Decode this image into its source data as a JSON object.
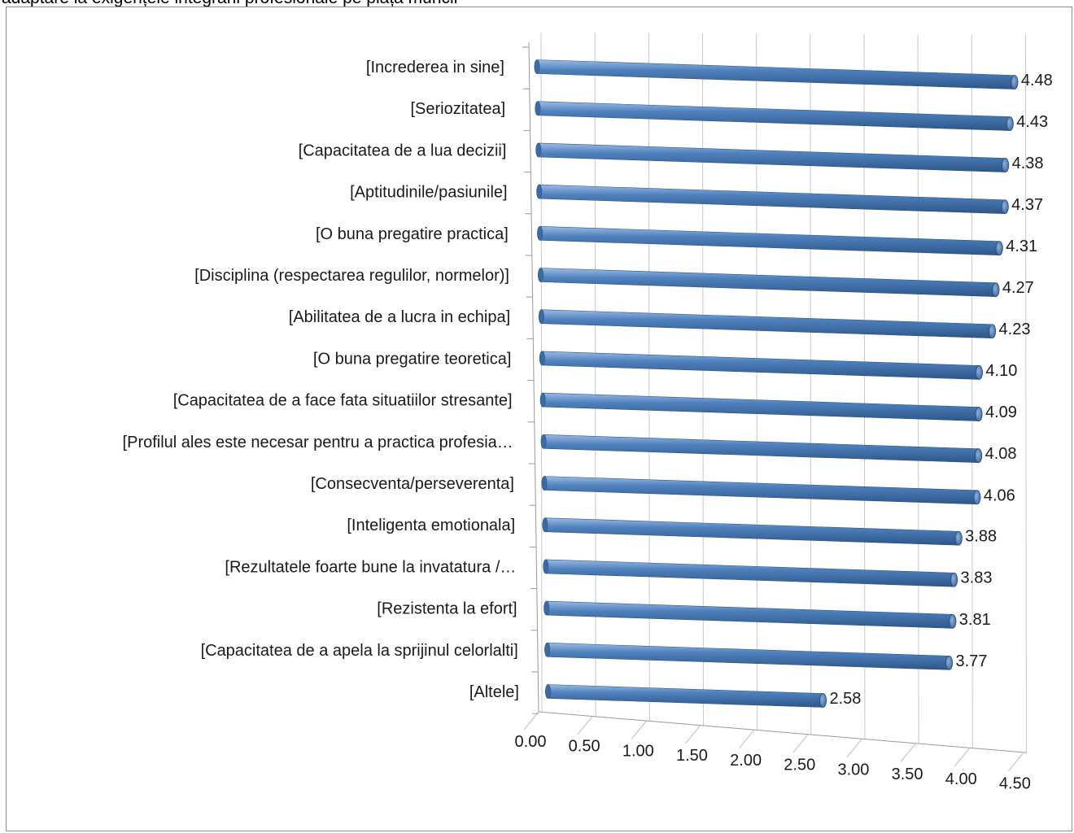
{
  "title": "adaptare la exigențele integrării profesionale pe piața muncii",
  "chart_data": {
    "type": "bar",
    "orientation": "horizontal",
    "style": "3d-cylinder",
    "categories": [
      "[Increderea in sine]",
      "[Seriozitatea]",
      "[Capacitatea de a lua decizii]",
      "[Aptitudinile/pasiunile]",
      "[O buna pregatire practica]",
      "[Disciplina (respectarea regulilor, normelor)]",
      "[Abilitatea de a lucra in echipa]",
      "[O buna pregatire teoretica]",
      "[Capacitatea de a face fata situatiilor stresante]",
      "[Profilul ales este necesar pentru a practica profesia…",
      "[Consecventa/perseverenta]",
      "[Inteligenta emotionala]",
      "[Rezultatele foarte bune la invatatura /…",
      "[Rezistenta la efort]",
      "[Capacitatea de a apela la sprijinul celorlalti]",
      "[Altele]"
    ],
    "values": [
      4.48,
      4.43,
      4.38,
      4.37,
      4.31,
      4.27,
      4.23,
      4.1,
      4.09,
      4.08,
      4.06,
      3.88,
      3.83,
      3.81,
      3.77,
      2.58
    ],
    "value_labels": [
      "4.48",
      "4.43",
      "4.38",
      "4.37",
      "4.31",
      "4.27",
      "4.23",
      "4.10",
      "4.09",
      "4.08",
      "4.06",
      "3.88",
      "3.83",
      "3.81",
      "3.77",
      "2.58"
    ],
    "x_ticks": [
      "0.00",
      "0.50",
      "1.00",
      "1.50",
      "2.00",
      "2.50",
      "3.00",
      "3.50",
      "4.00",
      "4.50"
    ],
    "xlim": [
      0,
      4.5
    ],
    "bar_color": "#4f81bd",
    "grid": true,
    "legend": "none"
  }
}
